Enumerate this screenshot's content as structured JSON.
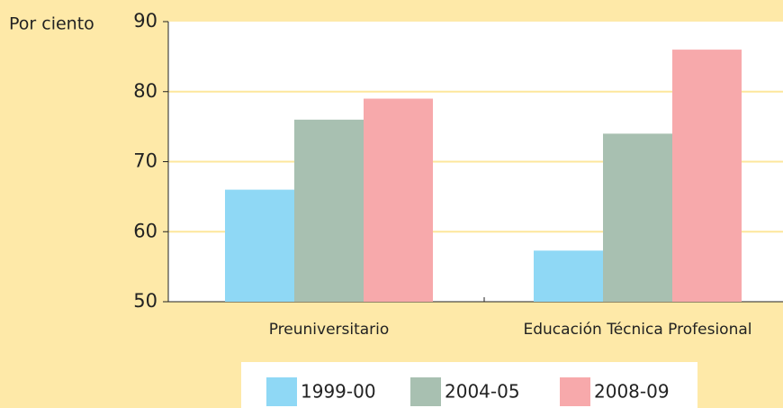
{
  "chart_data": {
    "type": "bar",
    "ylabel": "Por ciento",
    "categories": [
      "Preuniversitario",
      "Educación Técnica Profesional"
    ],
    "series": [
      {
        "name": "1999-00",
        "color": "#8fd8f5",
        "values": [
          66,
          57.3
        ]
      },
      {
        "name": "2004-05",
        "color": "#a8c0b1",
        "values": [
          76,
          74
        ]
      },
      {
        "name": "2008-09",
        "color": "#f7a9ab",
        "values": [
          79,
          86
        ]
      }
    ],
    "ylim": [
      50,
      90
    ],
    "yticks": [
      50,
      60,
      70,
      80,
      90
    ],
    "grid": true,
    "legend": "bottom"
  }
}
